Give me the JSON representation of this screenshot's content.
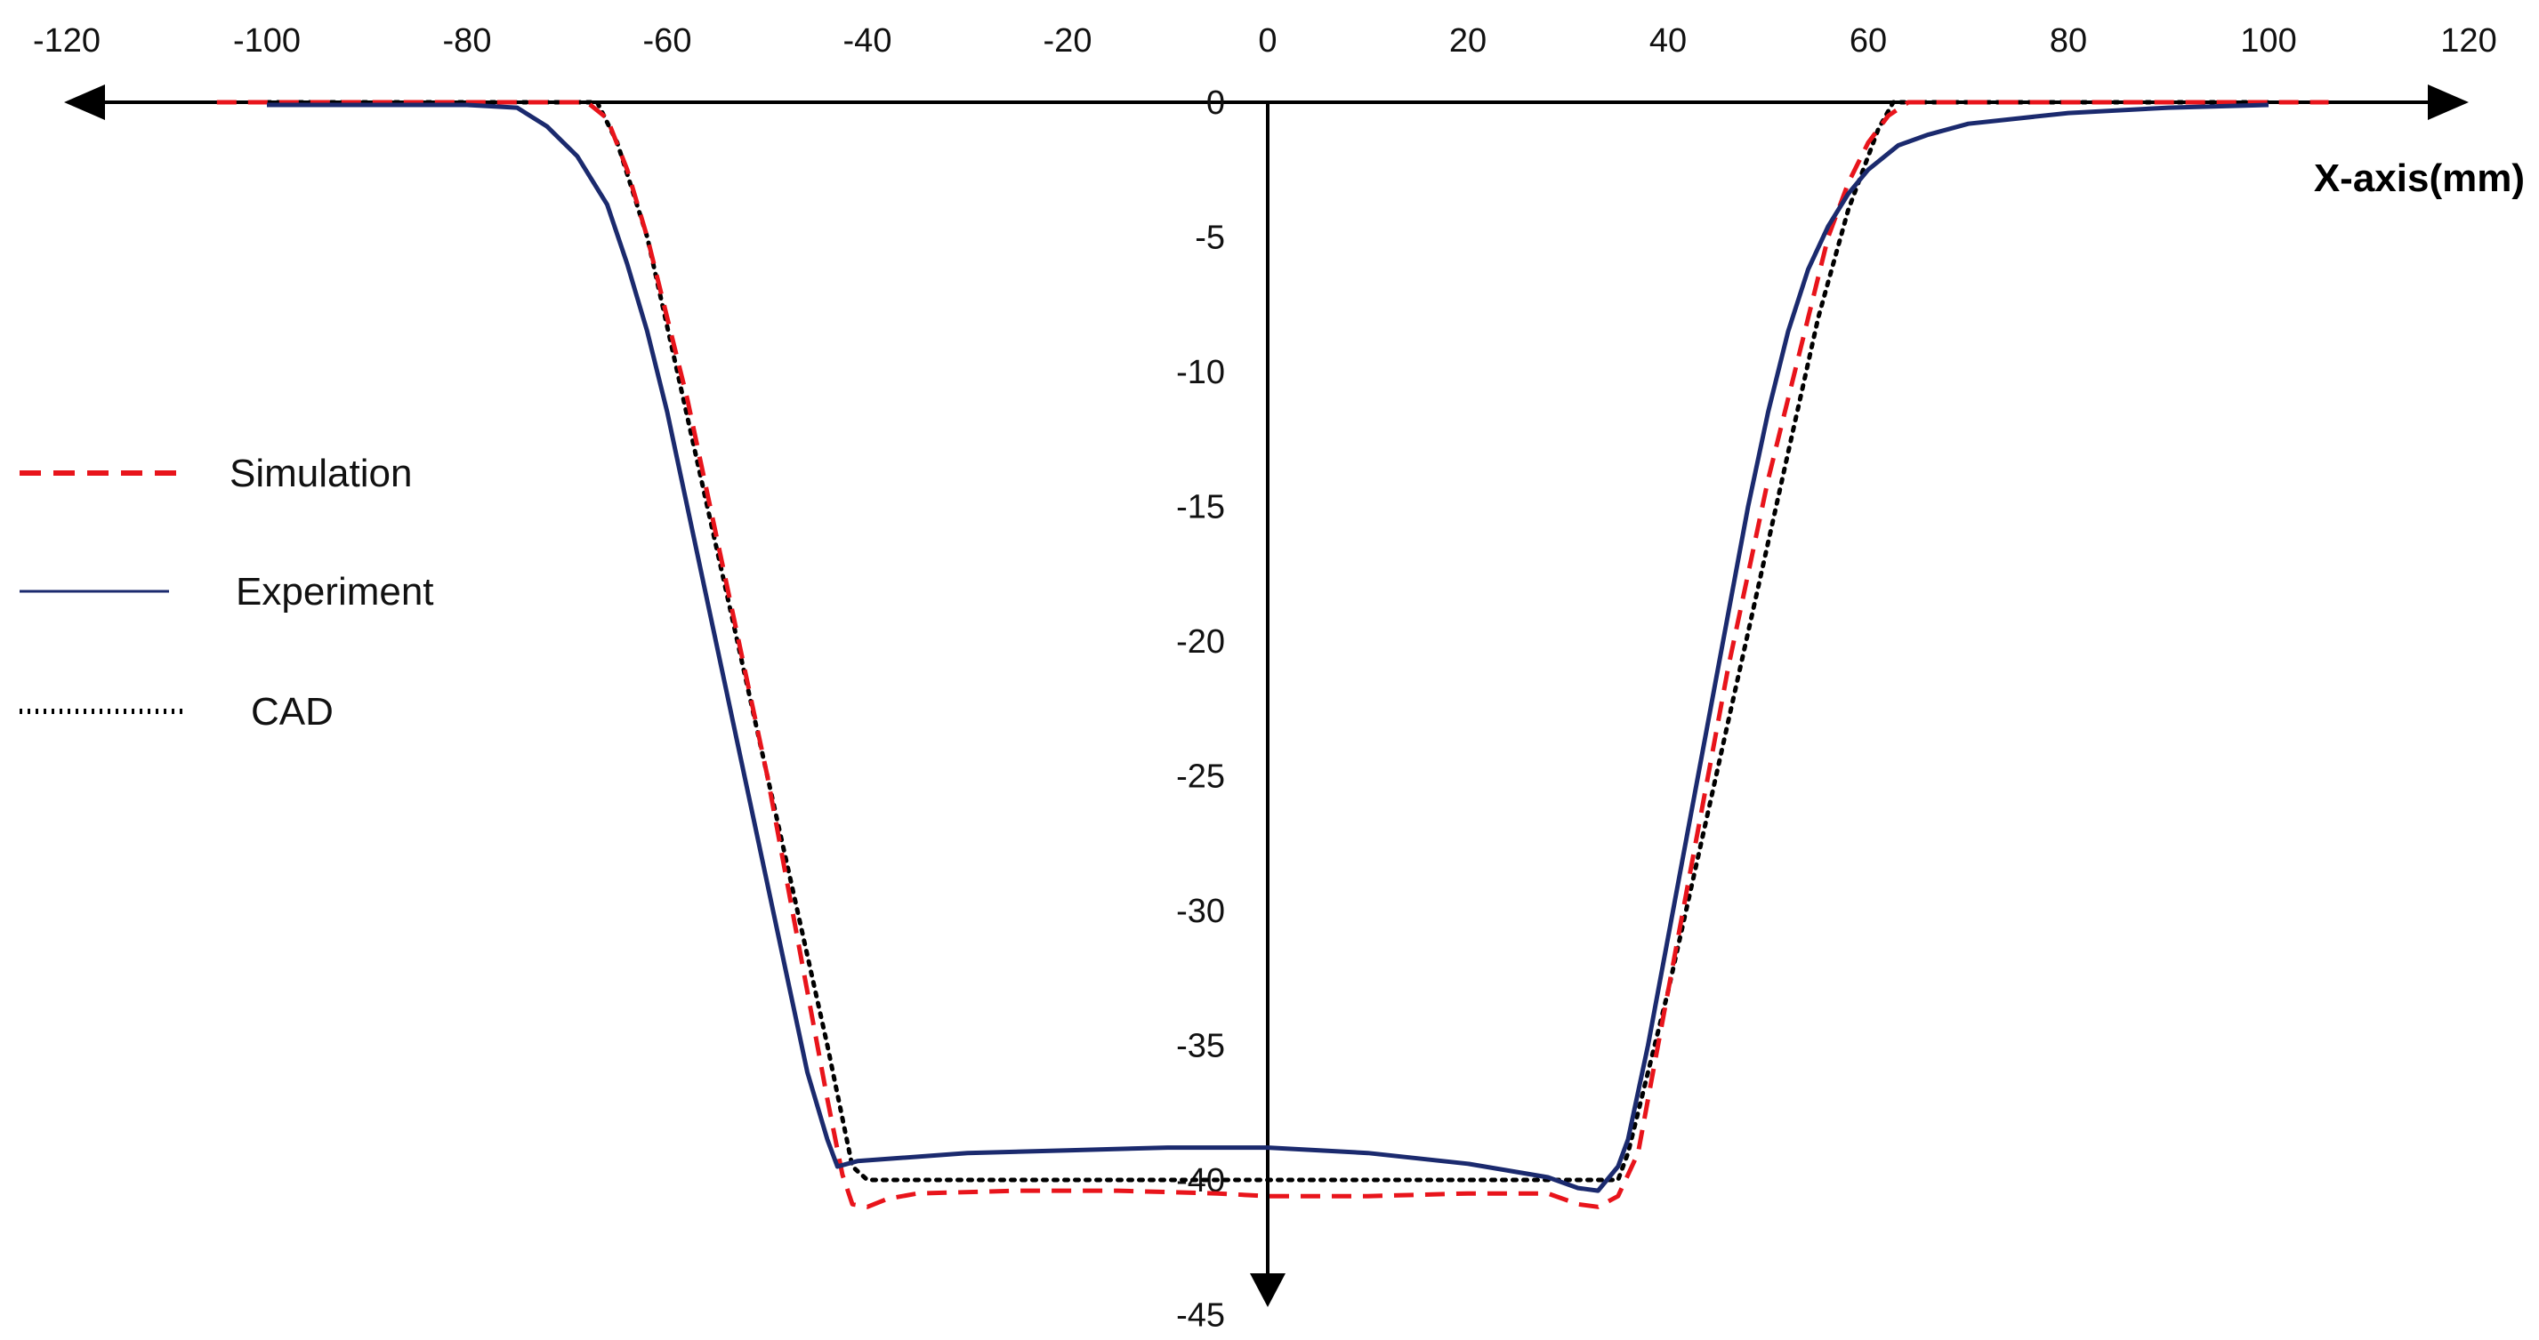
{
  "chart_data": {
    "type": "line",
    "title": "",
    "xlabel": "X-axis(mm)",
    "ylabel": "",
    "xlim": [
      -120,
      120
    ],
    "ylim": [
      -45,
      0
    ],
    "x_ticks": [
      "-120",
      "-100",
      "-80",
      "-60",
      "-40",
      "-20",
      "0",
      "20",
      "40",
      "60",
      "80",
      "100",
      "120"
    ],
    "y_ticks": [
      "0",
      "-5",
      "-10",
      "-15",
      "-20",
      "-25",
      "-30",
      "-35",
      "-40",
      "-45"
    ],
    "grid": false,
    "legend_position": "left",
    "series": [
      {
        "name": "Simulation",
        "color": "#e8141b",
        "style": "dashed",
        "points": [
          [
            -105,
            0
          ],
          [
            -68,
            0
          ],
          [
            -66,
            -0.6
          ],
          [
            -64,
            -2.5
          ],
          [
            -62,
            -5
          ],
          [
            -60,
            -8
          ],
          [
            -58,
            -11
          ],
          [
            -56,
            -14.5
          ],
          [
            -54,
            -18
          ],
          [
            -52,
            -21.5
          ],
          [
            -50,
            -25
          ],
          [
            -48,
            -29
          ],
          [
            -46,
            -33
          ],
          [
            -44,
            -37
          ],
          [
            -42.5,
            -39.8
          ],
          [
            -41.5,
            -40.9
          ],
          [
            -40,
            -41
          ],
          [
            -38,
            -40.7
          ],
          [
            -35,
            -40.5
          ],
          [
            -25,
            -40.4
          ],
          [
            -15,
            -40.4
          ],
          [
            -5,
            -40.5
          ],
          [
            0,
            -40.6
          ],
          [
            10,
            -40.6
          ],
          [
            20,
            -40.5
          ],
          [
            28,
            -40.5
          ],
          [
            31,
            -40.9
          ],
          [
            33,
            -41
          ],
          [
            35,
            -40.6
          ],
          [
            37,
            -39
          ],
          [
            38.5,
            -36
          ],
          [
            40,
            -33
          ],
          [
            42,
            -29
          ],
          [
            44,
            -25
          ],
          [
            46,
            -21
          ],
          [
            48,
            -17.5
          ],
          [
            50,
            -14
          ],
          [
            52,
            -11
          ],
          [
            54,
            -8
          ],
          [
            56,
            -5
          ],
          [
            58,
            -3
          ],
          [
            60,
            -1.5
          ],
          [
            62,
            -0.5
          ],
          [
            64,
            0
          ],
          [
            106,
            0
          ]
        ]
      },
      {
        "name": "Experiment",
        "color": "#1b2a6e",
        "style": "solid",
        "points": [
          [
            -100,
            -0.1
          ],
          [
            -80,
            -0.1
          ],
          [
            -75,
            -0.2
          ],
          [
            -72,
            -0.9
          ],
          [
            -69,
            -2
          ],
          [
            -66,
            -3.8
          ],
          [
            -64,
            -6
          ],
          [
            -62,
            -8.5
          ],
          [
            -60,
            -11.5
          ],
          [
            -58,
            -15
          ],
          [
            -56,
            -18.5
          ],
          [
            -54,
            -22
          ],
          [
            -52,
            -25.5
          ],
          [
            -50,
            -29
          ],
          [
            -48,
            -32.5
          ],
          [
            -46,
            -36
          ],
          [
            -44,
            -38.5
          ],
          [
            -43,
            -39.5
          ],
          [
            -41,
            -39.3
          ],
          [
            -30,
            -39
          ],
          [
            -20,
            -38.9
          ],
          [
            -10,
            -38.8
          ],
          [
            0,
            -38.8
          ],
          [
            10,
            -39
          ],
          [
            20,
            -39.4
          ],
          [
            28,
            -39.9
          ],
          [
            31,
            -40.3
          ],
          [
            33,
            -40.4
          ],
          [
            35,
            -39.5
          ],
          [
            36,
            -38.5
          ],
          [
            38,
            -35
          ],
          [
            40,
            -31
          ],
          [
            42,
            -27
          ],
          [
            44,
            -23
          ],
          [
            46,
            -19
          ],
          [
            48,
            -15
          ],
          [
            50,
            -11.5
          ],
          [
            52,
            -8.5
          ],
          [
            54,
            -6.2
          ],
          [
            56,
            -4.6
          ],
          [
            58,
            -3.4
          ],
          [
            60,
            -2.5
          ],
          [
            63,
            -1.6
          ],
          [
            66,
            -1.2
          ],
          [
            70,
            -0.8
          ],
          [
            80,
            -0.4
          ],
          [
            90,
            -0.2
          ],
          [
            100,
            -0.1
          ]
        ]
      },
      {
        "name": "CAD",
        "color": "#000000",
        "style": "dotted",
        "points": [
          [
            -100,
            0
          ],
          [
            -67,
            0
          ],
          [
            -65,
            -1.5
          ],
          [
            -62,
            -5
          ],
          [
            -59,
            -10
          ],
          [
            -56,
            -15
          ],
          [
            -53,
            -20
          ],
          [
            -50,
            -25
          ],
          [
            -47,
            -30
          ],
          [
            -44,
            -35
          ],
          [
            -41.5,
            -39.5
          ],
          [
            -40,
            -40
          ],
          [
            35,
            -40
          ],
          [
            36,
            -39
          ],
          [
            38,
            -36
          ],
          [
            40,
            -33
          ],
          [
            43,
            -28
          ],
          [
            46,
            -23
          ],
          [
            49,
            -18
          ],
          [
            52,
            -13
          ],
          [
            55,
            -8
          ],
          [
            58,
            -4
          ],
          [
            61,
            -1
          ],
          [
            62.5,
            0
          ],
          [
            100,
            0
          ]
        ]
      }
    ]
  }
}
